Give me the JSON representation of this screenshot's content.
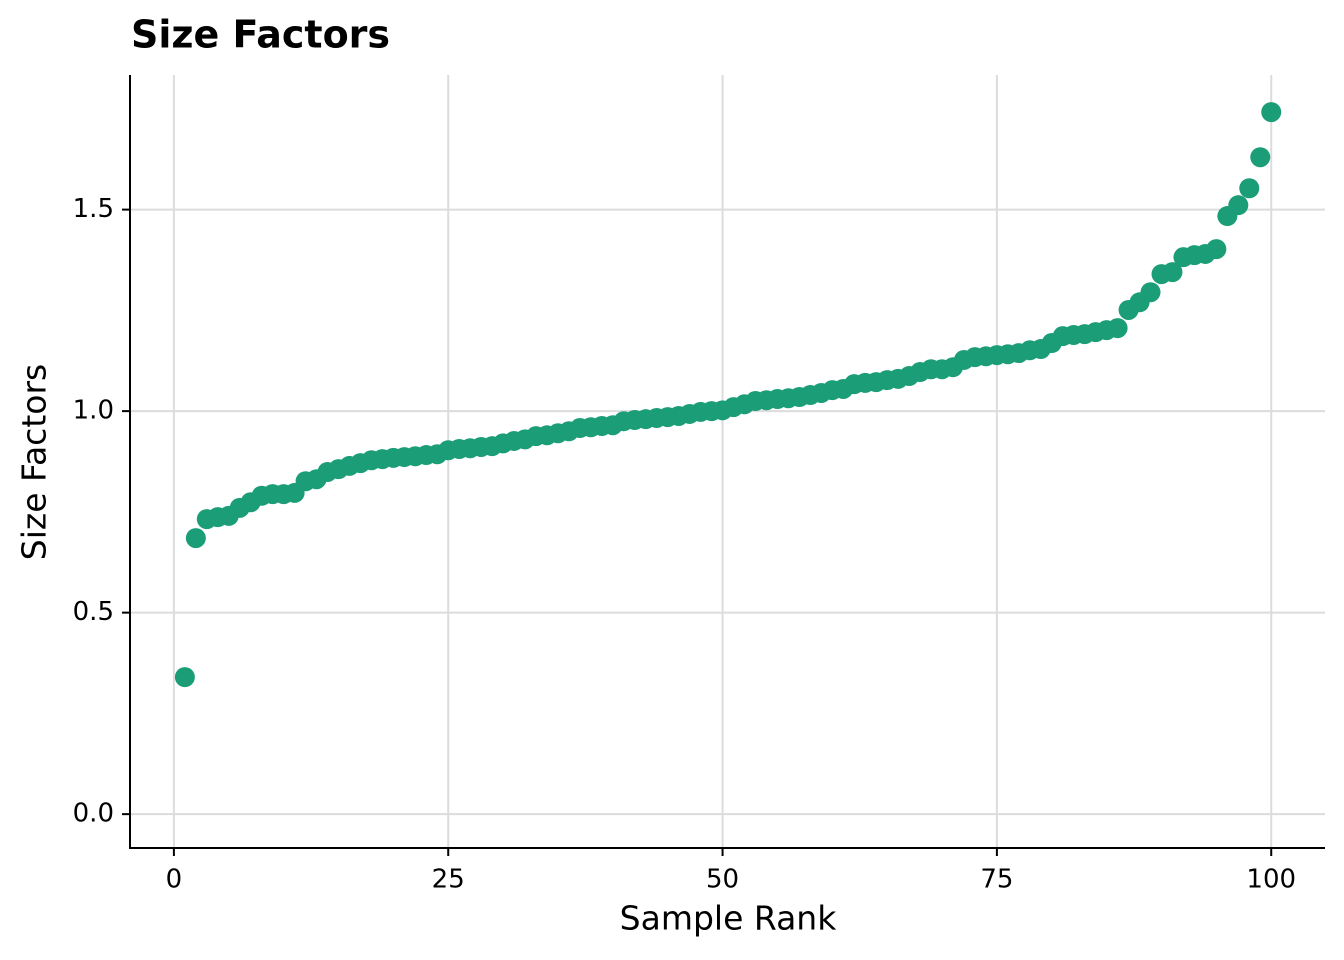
{
  "chart_data": {
    "type": "scatter",
    "title": "Size Factors",
    "xlabel": "Sample Rank",
    "ylabel": "Size Factors",
    "x": [
      1,
      2,
      3,
      4,
      5,
      6,
      7,
      8,
      9,
      10,
      11,
      12,
      13,
      14,
      15,
      16,
      17,
      18,
      19,
      20,
      21,
      22,
      23,
      24,
      25,
      26,
      27,
      28,
      29,
      30,
      31,
      32,
      33,
      34,
      35,
      36,
      37,
      38,
      39,
      40,
      41,
      42,
      43,
      44,
      45,
      46,
      47,
      48,
      49,
      50,
      51,
      52,
      53,
      54,
      55,
      56,
      57,
      58,
      59,
      60,
      61,
      62,
      63,
      64,
      65,
      66,
      67,
      68,
      69,
      70,
      71,
      72,
      73,
      74,
      75,
      76,
      77,
      78,
      79,
      80,
      81,
      82,
      83,
      84,
      85,
      86,
      87,
      88,
      89,
      90,
      91,
      92,
      93,
      94,
      95,
      96,
      97,
      98,
      99,
      100
    ],
    "series": [
      {
        "name": "Size Factors",
        "color": "#1b9e77",
        "values": [
          0.34,
          0.685,
          0.732,
          0.737,
          0.74,
          0.76,
          0.774,
          0.79,
          0.794,
          0.794,
          0.797,
          0.826,
          0.831,
          0.849,
          0.856,
          0.864,
          0.871,
          0.878,
          0.881,
          0.884,
          0.886,
          0.888,
          0.891,
          0.893,
          0.903,
          0.906,
          0.908,
          0.911,
          0.913,
          0.92,
          0.926,
          0.93,
          0.938,
          0.94,
          0.945,
          0.95,
          0.958,
          0.96,
          0.963,
          0.965,
          0.975,
          0.978,
          0.98,
          0.983,
          0.985,
          0.988,
          0.993,
          0.998,
          1.0,
          1.002,
          1.01,
          1.017,
          1.025,
          1.027,
          1.03,
          1.032,
          1.035,
          1.04,
          1.045,
          1.052,
          1.055,
          1.067,
          1.07,
          1.072,
          1.077,
          1.08,
          1.087,
          1.097,
          1.104,
          1.104,
          1.109,
          1.127,
          1.134,
          1.136,
          1.139,
          1.141,
          1.144,
          1.151,
          1.154,
          1.169,
          1.186,
          1.189,
          1.191,
          1.196,
          1.201,
          1.206,
          1.251,
          1.27,
          1.295,
          1.34,
          1.345,
          1.382,
          1.387,
          1.39,
          1.402,
          1.484,
          1.511,
          1.553,
          1.63,
          1.742
        ]
      }
    ],
    "xlim": [
      -4,
      104.9
    ],
    "ylim": [
      -0.084,
      1.834
    ],
    "xticks": [
      0,
      25,
      50,
      75,
      100
    ],
    "yticks": [
      {
        "value": 0,
        "label": "0.0"
      },
      0.5,
      {
        "value": 1,
        "label": "1.0"
      },
      1.5
    ],
    "grid": true
  }
}
